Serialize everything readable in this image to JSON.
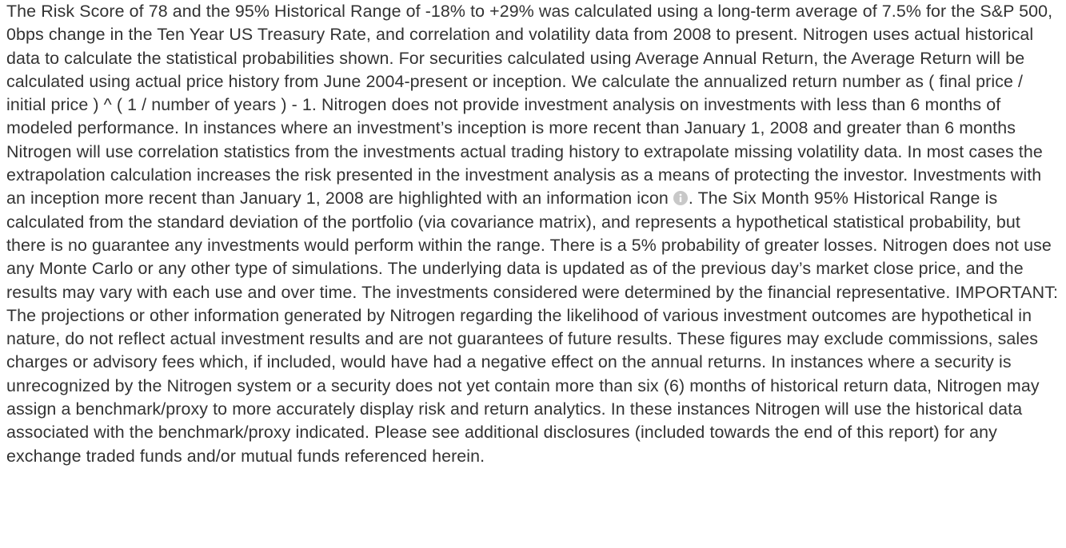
{
  "paragraph": {
    "before_icon": "The Risk Score of 78 and the 95% Historical Range of -18% to +29% was calculated using a long-term average of 7.5% for the S&P 500, 0bps change in the Ten Year US Treasury Rate, and correlation and volatility data from 2008 to present. Nitrogen uses actual historical data to calculate the statistical probabilities shown. For securities calculated using Average Annual Return, the Average Return will be calculated using actual price history from June 2004-present or inception. We calculate the annualized return number as ( final price / initial price ) ^ ( 1 / number of years ) - 1. Nitrogen does not provide investment analysis on investments with less than 6 months of modeled performance. In instances where an investment’s inception is more recent than January 1, 2008 and greater than 6 months Nitrogen will use correlation statistics from the investments actual trading history to extrapolate missing volatility data. In most cases the extrapolation calculation increases the risk presented in the investment analysis as a means of protecting the investor. Investments with an inception more recent than January 1, 2008 are highlighted with an information icon",
    "after_icon": ". The Six Month 95% Historical Range is calculated from the standard deviation of the portfolio (via covariance matrix), and represents a hypothetical statistical probability, but there is no guarantee any investments would perform within the range. There is a 5% probability of greater losses. Nitrogen does not use any Monte Carlo or any other type of simulations. The underlying data is updated as of the previous day’s market close price, and the results may vary with each use and over time. The investments considered were determined by the financial representative. IMPORTANT: The projections or other information generated by Nitrogen regarding the likelihood of various investment outcomes are hypothetical in nature, do not reflect actual investment results and are not guarantees of future results. These figures may exclude commissions, sales charges or advisory fees which, if included, would have had a negative effect on the annual returns. In instances where a security is unrecognized by the Nitrogen system or a security does not yet contain more than six (6) months of historical return data, Nitrogen may assign a benchmark/proxy to more accurately display risk and return analytics. In these instances Nitrogen will use the historical data associated with the benchmark/proxy indicated. Please see additional disclosures (included towards the end of this report) for any exchange traded funds and/or mutual funds referenced herein."
  }
}
